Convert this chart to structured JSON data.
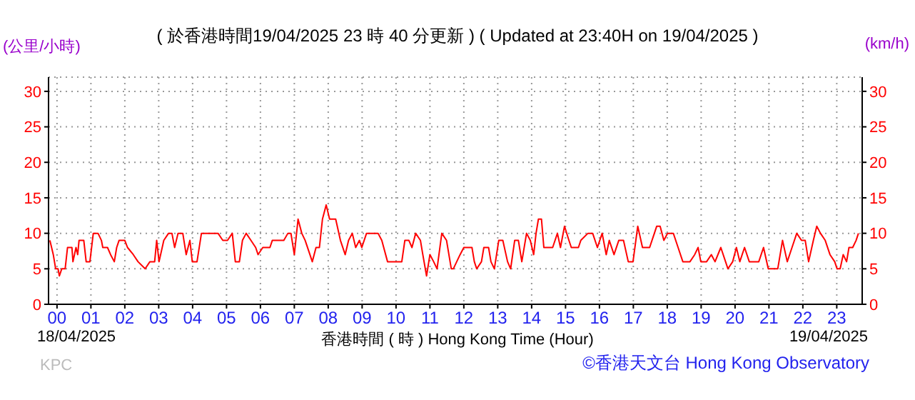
{
  "chart_data": {
    "type": "line",
    "title": "( 於香港時間19/04/2025 23 時 40 分更新 ) ( Updated at 23:40H on 19/04/2025 )",
    "ylabel": "(公里/小時)",
    "y2label": "(km/h)",
    "xlabel": "香港時間 ( 時 )  Hong Kong Time (Hour)",
    "annotations": [
      "18/04/2025",
      "19/04/2025",
      "KPC",
      "©香港天文台 Hong Kong Observatory"
    ],
    "series": [
      {
        "color": "#ff0000",
        "x": [
          -0.21,
          -0.11,
          -0.04,
          0.03,
          0.07,
          0.14,
          0.24,
          0.31,
          0.44,
          0.47,
          0.56,
          0.61,
          0.65,
          0.79,
          0.86,
          0.97,
          1.07,
          1.21,
          1.31,
          1.35,
          1.49,
          1.58,
          1.69,
          1.76,
          1.83,
          2.0,
          2.08,
          2.25,
          2.39,
          2.6,
          2.74,
          2.88,
          2.94,
          3.01,
          3.15,
          3.29,
          3.39,
          3.47,
          3.57,
          3.71,
          3.81,
          3.92,
          3.99,
          4.13,
          4.26,
          4.75,
          4.89,
          5.03,
          5.17,
          5.26,
          5.38,
          5.47,
          5.58,
          5.72,
          5.86,
          5.93,
          6.07,
          6.28,
          6.35,
          6.69,
          6.81,
          6.9,
          7.0,
          7.11,
          7.22,
          7.32,
          7.46,
          7.53,
          7.64,
          7.74,
          7.83,
          7.94,
          8.04,
          8.22,
          8.36,
          8.5,
          8.6,
          8.71,
          8.81,
          8.92,
          8.99,
          9.13,
          9.47,
          9.58,
          9.75,
          10.17,
          10.26,
          10.38,
          10.47,
          10.58,
          10.72,
          10.79,
          10.9,
          11.0,
          11.11,
          11.21,
          11.35,
          11.49,
          11.63,
          11.69,
          11.89,
          12.0,
          12.24,
          12.31,
          12.38,
          12.52,
          12.59,
          12.73,
          12.8,
          12.9,
          13.03,
          13.15,
          13.29,
          13.38,
          13.5,
          13.61,
          13.71,
          13.85,
          13.96,
          14.06,
          14.13,
          14.2,
          14.29,
          14.36,
          14.62,
          14.76,
          14.85,
          14.97,
          15.1,
          15.17,
          15.38,
          15.45,
          15.66,
          15.8,
          15.94,
          16.08,
          16.2,
          16.29,
          16.43,
          16.57,
          16.71,
          16.85,
          16.99,
          17.13,
          17.27,
          17.48,
          17.62,
          17.69,
          17.79,
          17.9,
          18.01,
          18.18,
          18.32,
          18.46,
          18.67,
          18.81,
          18.91,
          18.99,
          19.16,
          19.3,
          19.41,
          19.58,
          19.72,
          19.79,
          19.93,
          20.04,
          20.14,
          20.28,
          20.42,
          20.7,
          20.84,
          20.98,
          21.26,
          21.4,
          21.54,
          21.68,
          21.82,
          21.96,
          22.07,
          22.17,
          22.31,
          22.41,
          22.52,
          22.66,
          22.8,
          22.94,
          23.01,
          23.1,
          23.19,
          23.29,
          23.36,
          23.47,
          23.57,
          23.64
        ],
        "values": [
          9,
          7,
          5,
          5,
          4,
          5,
          5,
          8,
          8,
          6,
          8,
          7,
          9,
          9,
          6,
          6,
          10,
          10,
          9,
          8,
          8,
          7,
          6,
          8,
          9,
          9,
          8,
          7,
          6,
          5,
          6,
          6,
          9,
          6,
          9,
          10,
          10,
          8,
          10,
          10,
          7,
          9,
          6,
          6,
          10,
          10,
          9,
          9,
          10,
          6,
          6,
          9,
          10,
          9,
          8,
          7,
          8,
          8,
          9,
          9,
          10,
          10,
          7,
          12,
          10,
          9,
          7,
          6,
          8,
          8,
          12,
          14,
          12,
          12,
          9,
          7,
          9,
          10,
          8,
          9,
          8,
          10,
          10,
          9,
          6,
          6,
          9,
          9,
          8,
          10,
          9,
          7,
          4,
          7,
          6,
          5,
          10,
          9,
          5,
          5,
          7,
          8,
          8,
          6,
          5,
          6,
          8,
          8,
          6,
          5,
          9,
          9,
          6,
          5,
          9,
          9,
          6,
          10,
          9,
          7,
          10,
          12,
          12,
          8,
          8,
          10,
          8,
          11,
          9,
          8,
          8,
          9,
          10,
          10,
          8,
          10,
          7,
          9,
          7,
          9,
          9,
          6,
          6,
          11,
          8,
          8,
          10,
          11,
          11,
          9,
          10,
          10,
          8,
          6,
          6,
          7,
          8,
          6,
          6,
          7,
          6,
          8,
          6,
          5,
          6,
          8,
          6,
          8,
          6,
          6,
          8,
          5,
          5,
          9,
          6,
          8,
          10,
          9,
          9,
          6,
          9,
          11,
          10,
          9,
          7,
          6,
          5,
          5,
          7,
          6,
          8,
          8,
          9,
          10
        ]
      }
    ],
    "xlim": [
      -0.25,
      23.75
    ],
    "xticks": [
      {
        "value": 0,
        "label": "00"
      },
      {
        "value": 1,
        "label": "01"
      },
      {
        "value": 2,
        "label": "02"
      },
      {
        "value": 3,
        "label": "03"
      },
      {
        "value": 4,
        "label": "04"
      },
      {
        "value": 5,
        "label": "05"
      },
      {
        "value": 6,
        "label": "06"
      },
      {
        "value": 7,
        "label": "07"
      },
      {
        "value": 8,
        "label": "08"
      },
      {
        "value": 9,
        "label": "09"
      },
      {
        "value": 10,
        "label": "10"
      },
      {
        "value": 11,
        "label": "11"
      },
      {
        "value": 12,
        "label": "12"
      },
      {
        "value": 13,
        "label": "13"
      },
      {
        "value": 14,
        "label": "14"
      },
      {
        "value": 15,
        "label": "15"
      },
      {
        "value": 16,
        "label": "16"
      },
      {
        "value": 17,
        "label": "17"
      },
      {
        "value": 18,
        "label": "18"
      },
      {
        "value": 19,
        "label": "19"
      },
      {
        "value": 20,
        "label": "20"
      },
      {
        "value": 21,
        "label": "21"
      },
      {
        "value": 22,
        "label": "22"
      },
      {
        "value": 23,
        "label": "23"
      }
    ],
    "ylim": [
      0,
      32
    ],
    "yticks": [
      0,
      5,
      10,
      15,
      20,
      25,
      30
    ],
    "y2lim": [
      0,
      32
    ],
    "y2ticks": [
      0,
      5,
      10,
      15,
      20,
      25,
      30
    ],
    "grid": true,
    "marker": "none",
    "line_style": "solid"
  }
}
